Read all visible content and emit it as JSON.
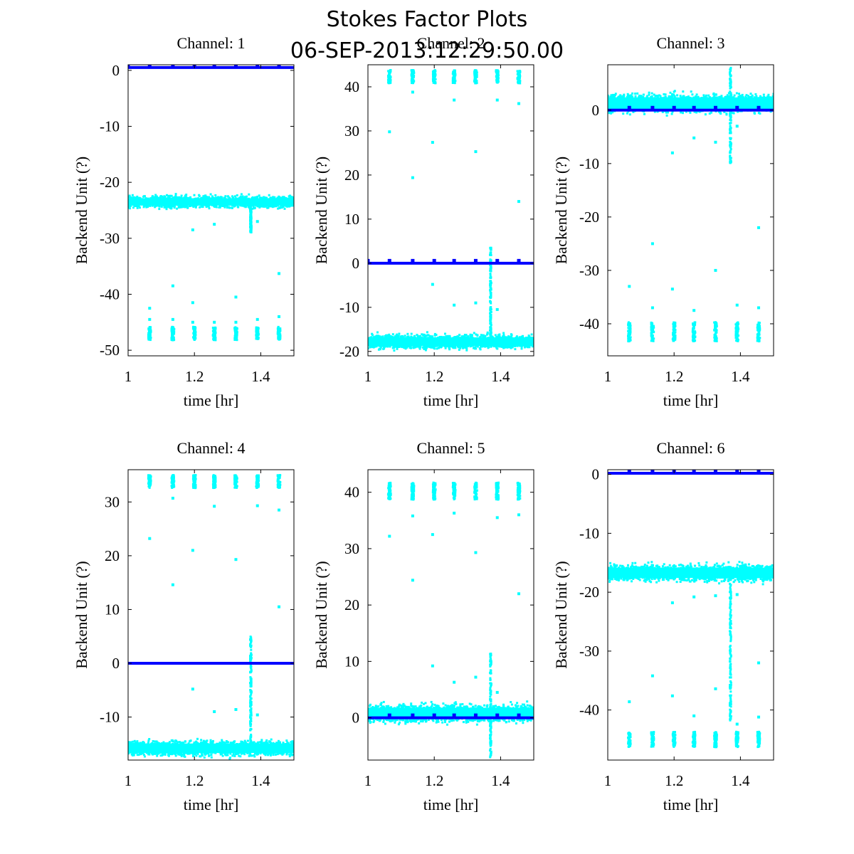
{
  "figure": {
    "title_line1": "Stokes Factor Plots",
    "title_line2": "06-SEP-2013:12:29:50.00"
  },
  "colors": {
    "scatter": "#00ffff",
    "mean_line": "#0000ff",
    "axes": "#000000"
  },
  "chart_data": [
    {
      "type": "scatter",
      "title": "Channel: 1",
      "xlabel": "time [hr]",
      "ylabel": "Backend Unit (?)",
      "xlim": [
        1,
        1.5
      ],
      "ylim": [
        -51,
        1
      ],
      "xticks": [
        1,
        1.2,
        1.4
      ],
      "yticks": [
        0,
        -10,
        -20,
        -30,
        -40,
        -50
      ],
      "main_band": {
        "center": -23.5,
        "half_width": 1.2
      },
      "mean_line": 0.5,
      "spike": {
        "x": 1.37,
        "from": -23.5,
        "to": -29
      },
      "clusters": {
        "center": -47,
        "half_width": 1.2
      },
      "strays": [
        [
          1.065,
          -42.5
        ],
        [
          1.065,
          -44.5
        ],
        [
          1.135,
          -38.5
        ],
        [
          1.135,
          -44.5
        ],
        [
          1.195,
          -41.5
        ],
        [
          1.195,
          -45
        ],
        [
          1.26,
          -45
        ],
        [
          1.325,
          -40.5
        ],
        [
          1.325,
          -45
        ],
        [
          1.39,
          -44.5
        ],
        [
          1.455,
          -36.3
        ],
        [
          1.455,
          -44
        ],
        [
          1.195,
          -28.5
        ],
        [
          1.26,
          -27.5
        ],
        [
          1.39,
          -27
        ]
      ],
      "mean_markers": [
        1.0,
        1.065,
        1.135,
        1.2,
        1.26,
        1.325,
        1.39,
        1.455
      ]
    },
    {
      "type": "scatter",
      "title": "Channel: 2",
      "xlabel": "time [hr]",
      "ylabel": "Backend Unit (?)",
      "xlim": [
        1,
        1.5
      ],
      "ylim": [
        -21,
        45
      ],
      "xticks": [
        1,
        1.2,
        1.4
      ],
      "yticks": [
        40,
        30,
        20,
        10,
        0,
        -10,
        -20
      ],
      "main_band": {
        "center": -17.8,
        "half_width": 1.8
      },
      "mean_line": 0,
      "spike": {
        "x": 1.37,
        "from": -17,
        "to": 3.5
      },
      "clusters": {
        "center": 42.3,
        "half_width": 1.5
      },
      "strays": [
        [
          1.065,
          29.8
        ],
        [
          1.135,
          19.4
        ],
        [
          1.135,
          38.8
        ],
        [
          1.195,
          27.4
        ],
        [
          1.195,
          -4.8
        ],
        [
          1.26,
          -9.5
        ],
        [
          1.26,
          37
        ],
        [
          1.325,
          25.3
        ],
        [
          1.325,
          -9
        ],
        [
          1.39,
          -10.5
        ],
        [
          1.39,
          37
        ],
        [
          1.455,
          14
        ],
        [
          1.455,
          36.2
        ]
      ],
      "mean_markers": [
        1.0,
        1.065,
        1.135,
        1.2,
        1.26,
        1.325,
        1.39,
        1.455
      ]
    },
    {
      "type": "scatter",
      "title": "Channel: 3",
      "xlabel": "time [hr]",
      "ylabel": "Backend Unit (?)",
      "xlim": [
        1,
        1.5
      ],
      "ylim": [
        -46,
        8.5
      ],
      "xticks": [
        1,
        1.2,
        1.4
      ],
      "yticks": [
        0,
        -10,
        -20,
        -30,
        -40
      ],
      "main_band": {
        "center": 1.3,
        "half_width": 2.0
      },
      "mean_line": 0,
      "spike": {
        "x": 1.37,
        "from": -10,
        "to": 8
      },
      "clusters": {
        "center": -41.5,
        "half_width": 1.8
      },
      "strays": [
        [
          1.065,
          -33
        ],
        [
          1.135,
          -25
        ],
        [
          1.135,
          -37
        ],
        [
          1.195,
          -8
        ],
        [
          1.195,
          -33.5
        ],
        [
          1.26,
          -5.2
        ],
        [
          1.26,
          -37.5
        ],
        [
          1.325,
          -30
        ],
        [
          1.325,
          -6
        ],
        [
          1.39,
          -3
        ],
        [
          1.39,
          -36.5
        ],
        [
          1.455,
          -22
        ],
        [
          1.455,
          -37
        ]
      ],
      "mean_markers": [
        1.065,
        1.135,
        1.2,
        1.26,
        1.325,
        1.39,
        1.455
      ]
    },
    {
      "type": "scatter",
      "title": "Channel: 4",
      "xlabel": "time [hr]",
      "ylabel": "Backend Unit (?)",
      "xlim": [
        1,
        1.5
      ],
      "ylim": [
        -18,
        36
      ],
      "xticks": [
        1,
        1.2,
        1.4
      ],
      "yticks": [
        30,
        20,
        10,
        0,
        -10
      ],
      "main_band": {
        "center": -15.8,
        "half_width": 1.6
      },
      "mean_line": 0,
      "spike": {
        "x": 1.37,
        "from": -15,
        "to": 5
      },
      "clusters": {
        "center": 33.8,
        "half_width": 1.2
      },
      "strays": [
        [
          1.065,
          23.2
        ],
        [
          1.135,
          14.6
        ],
        [
          1.135,
          30.7
        ],
        [
          1.195,
          21
        ],
        [
          1.195,
          -4.8
        ],
        [
          1.26,
          -9
        ],
        [
          1.26,
          29.2
        ],
        [
          1.325,
          19.3
        ],
        [
          1.325,
          -8.6
        ],
        [
          1.39,
          -9.6
        ],
        [
          1.39,
          29.3
        ],
        [
          1.455,
          10.5
        ],
        [
          1.455,
          28.5
        ]
      ],
      "mean_markers": []
    },
    {
      "type": "scatter",
      "title": "Channel: 5",
      "xlabel": "time [hr]",
      "ylabel": "Backend Unit (?)",
      "xlim": [
        1,
        1.5
      ],
      "ylim": [
        -7.5,
        44
      ],
      "xticks": [
        1,
        1.2,
        1.4
      ],
      "yticks": [
        40,
        30,
        20,
        10,
        0
      ],
      "main_band": {
        "center": 0.8,
        "half_width": 1.8
      },
      "mean_line": 0,
      "spike": {
        "x": 1.37,
        "from": -7,
        "to": 11.5
      },
      "clusters": {
        "center": 40.2,
        "half_width": 1.5
      },
      "strays": [
        [
          1.065,
          32.2
        ],
        [
          1.135,
          24.4
        ],
        [
          1.135,
          35.8
        ],
        [
          1.195,
          32.5
        ],
        [
          1.195,
          9.2
        ],
        [
          1.26,
          6.3
        ],
        [
          1.26,
          36.3
        ],
        [
          1.325,
          29.3
        ],
        [
          1.325,
          7.2
        ],
        [
          1.39,
          4.5
        ],
        [
          1.39,
          35.5
        ],
        [
          1.455,
          22
        ],
        [
          1.455,
          36
        ]
      ],
      "mean_markers": [
        1.065,
        1.135,
        1.2,
        1.26,
        1.325,
        1.39,
        1.455
      ]
    },
    {
      "type": "scatter",
      "title": "Channel: 6",
      "xlabel": "time [hr]",
      "ylabel": "Backend Unit (?)",
      "xlim": [
        1,
        1.5
      ],
      "ylim": [
        -48.5,
        0.8
      ],
      "xticks": [
        1,
        1.2,
        1.4
      ],
      "yticks": [
        0,
        -10,
        -20,
        -30,
        -40
      ],
      "main_band": {
        "center": -16.7,
        "half_width": 1.6
      },
      "mean_line": 0.2,
      "spike": {
        "x": 1.37,
        "from": -17,
        "to": -42
      },
      "clusters": {
        "center": -45,
        "half_width": 1.3
      },
      "strays": [
        [
          1.065,
          -38.6
        ],
        [
          1.135,
          -34.2
        ],
        [
          1.195,
          -21.8
        ],
        [
          1.195,
          -37.6
        ],
        [
          1.26,
          -20.8
        ],
        [
          1.26,
          -41
        ],
        [
          1.325,
          -36.4
        ],
        [
          1.325,
          -20.6
        ],
        [
          1.39,
          -20.4
        ],
        [
          1.39,
          -42.4
        ],
        [
          1.455,
          -32
        ],
        [
          1.455,
          -41.2
        ]
      ],
      "mean_markers": [
        1.065,
        1.135,
        1.2,
        1.26,
        1.325,
        1.39,
        1.455
      ]
    }
  ]
}
